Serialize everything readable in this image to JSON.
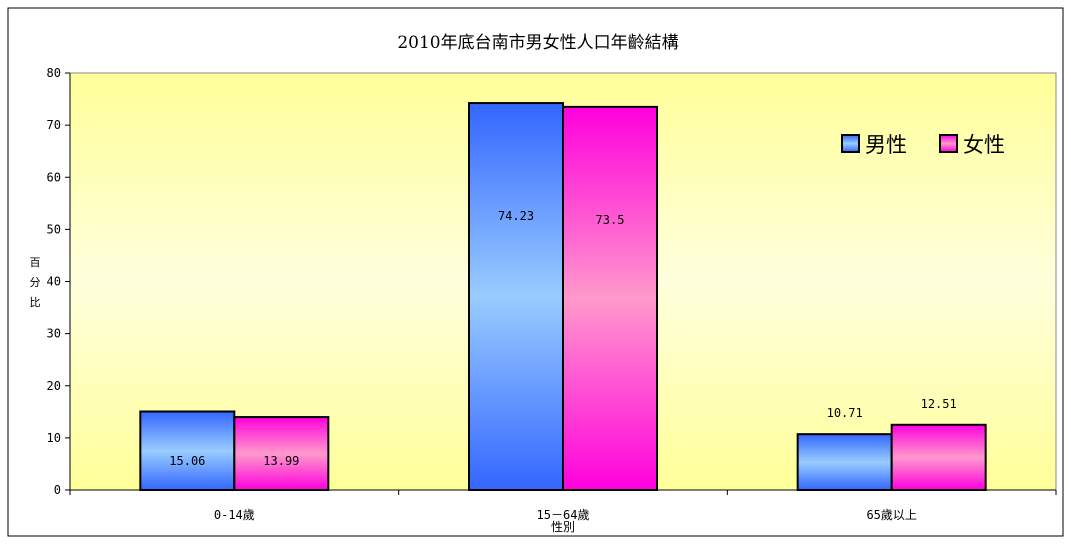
{
  "chart_data": {
    "type": "bar",
    "title": "2010年底台南市男女性人口年齡結構",
    "xlabel": "性別",
    "ylabel": "百分比",
    "categories": [
      "0-14歲",
      "15－64歲",
      "65歲以上"
    ],
    "series": [
      {
        "name": "男性",
        "values": [
          15.06,
          74.23,
          10.71
        ],
        "labels": [
          "15.06",
          "74.23",
          "10.71"
        ],
        "color": "#3f6fff"
      },
      {
        "name": "女性",
        "values": [
          13.99,
          73.5,
          12.51
        ],
        "labels": [
          "13.99",
          "73.5",
          "12.51"
        ],
        "color": "#ff33dd"
      }
    ],
    "ylim": [
      0,
      80
    ],
    "yticks": [
      0,
      10,
      20,
      30,
      40,
      50,
      60,
      70,
      80
    ],
    "ytick_labels": [
      "0",
      "10",
      "20",
      "30",
      "40",
      "50",
      "60",
      "70",
      "80"
    ],
    "grid": false,
    "legend_position": "top-right",
    "plot_background": "#ffffcc"
  }
}
